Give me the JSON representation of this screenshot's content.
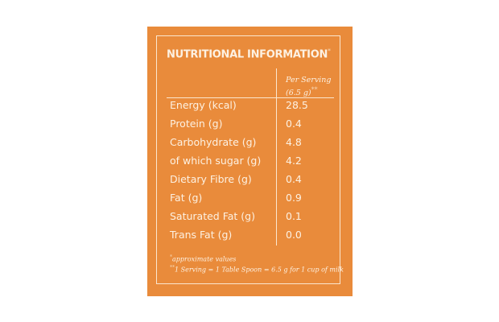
{
  "header": {
    "title": "NUTRITIONAL INFORMATION",
    "title_mark": "*"
  },
  "table": {
    "column_header": {
      "line1": "Per Serving",
      "line2": "(6.5 g)",
      "mark": "**"
    },
    "rows": [
      [
        "Energy (kcal)",
        "28.5"
      ],
      [
        "Protein (g)",
        "0.4"
      ],
      [
        "Carbohydrate (g)",
        "4.8"
      ],
      [
        "of which sugar (g)",
        "4.2"
      ],
      [
        "Dietary Fibre (g)",
        "0.4"
      ],
      [
        "Fat (g)",
        "0.9"
      ],
      [
        "Saturated Fat (g)",
        "0.1"
      ],
      [
        "Trans Fat (g)",
        "0.0"
      ]
    ]
  },
  "footnotes": [
    {
      "mark": "*",
      "text": "approximate values"
    },
    {
      "mark": "**",
      "text": "1 Serving = 1 Table Spoon = 6.5 g for 1 cup of milk"
    }
  ]
}
